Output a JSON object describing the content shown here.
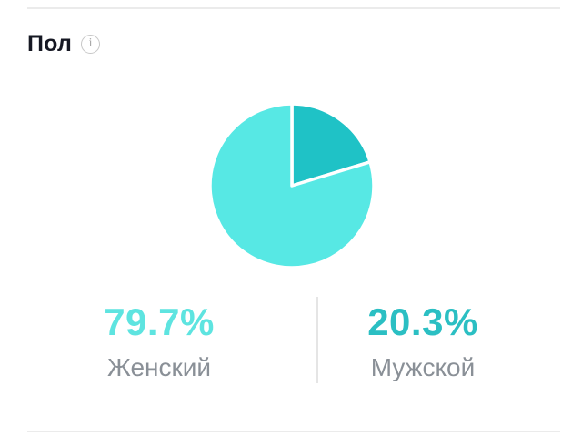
{
  "header": {
    "title": "Пол"
  },
  "chart_data": {
    "type": "pie",
    "title": "Пол",
    "labels": [
      "Женский",
      "Мужской"
    ],
    "ids": [
      "female",
      "male"
    ],
    "values": [
      79.7,
      20.3
    ],
    "colors": [
      "#57e8e4",
      "#1fc2c6"
    ],
    "start_angle_deg": 0,
    "direction": "clockwise",
    "slice_separator_color": "#ffffff",
    "legend_position": "bottom"
  },
  "stats": [
    {
      "percent": "79.7%",
      "label": "Женский",
      "color": "#5ee4e0"
    },
    {
      "percent": "20.3%",
      "label": "Мужской",
      "color": "#2bbfc3"
    }
  ],
  "colors": {
    "female_accent": "#57e8e4",
    "male_accent": "#1fc2c6",
    "title_text": "#161823",
    "label_gray": "#8a9097"
  }
}
